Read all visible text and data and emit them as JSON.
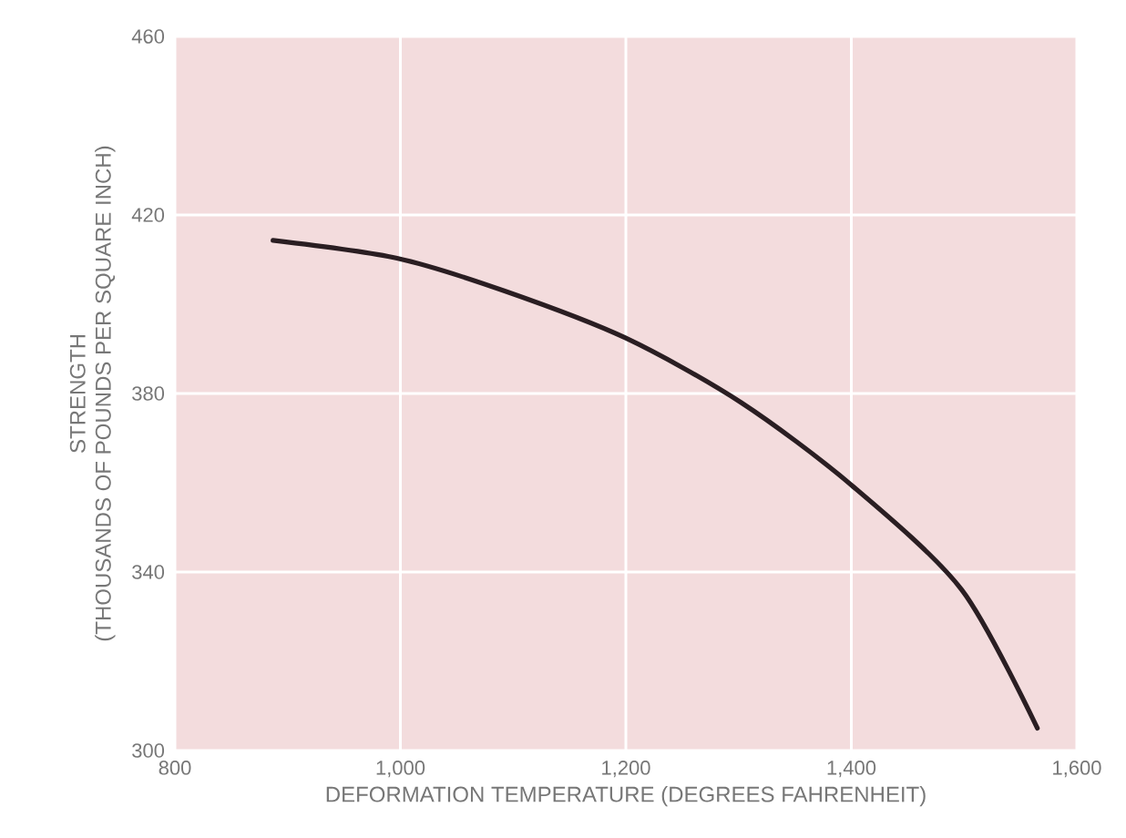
{
  "chart_data": {
    "type": "line",
    "xlabel": "DEFORMATION TEMPERATURE (DEGREES FAHRENHEIT)",
    "ylabel": [
      "STRENGTH",
      "(THOUSANDS OF POUNDS PER SQUARE INCH)"
    ],
    "x": [
      887,
      997,
      1092,
      1200,
      1302,
      1400,
      1498,
      1565
    ],
    "series": [
      {
        "color": "#2a1e22",
        "values": [
          414.3,
          410.3,
          403,
          392.4,
          378,
          359.5,
          336,
          305
        ]
      }
    ],
    "xlim": [
      800,
      1600
    ],
    "ylim": [
      300,
      460
    ],
    "xticks": [
      {
        "value": 800,
        "label": "800"
      },
      {
        "value": 1000,
        "label": "1,000"
      },
      {
        "value": 1200,
        "label": "1,200"
      },
      {
        "value": 1400,
        "label": "1,400"
      },
      {
        "value": 1600,
        "label": "1,600"
      }
    ],
    "yticks": [
      300,
      340,
      380,
      420,
      460
    ],
    "grid": true
  }
}
